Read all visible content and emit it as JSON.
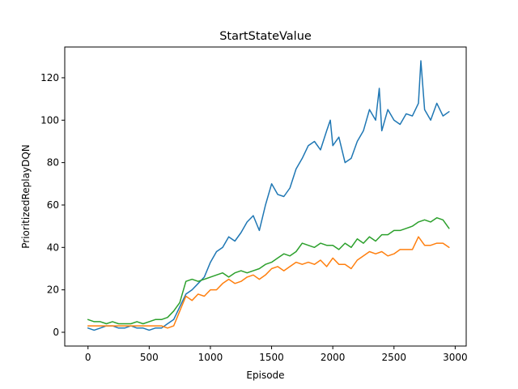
{
  "chart_data": {
    "type": "line",
    "title": "StartStateValue",
    "xlabel": "Episode",
    "ylabel": "PrioritizedReplayDQN",
    "xlim": [
      -190,
      3090
    ],
    "ylim": [
      -6.5,
      134.5
    ],
    "xticks": [
      0,
      500,
      1000,
      1500,
      2000,
      2500,
      3000
    ],
    "yticks": [
      0,
      20,
      40,
      60,
      80,
      100,
      120
    ],
    "grid": false,
    "colors": [
      "#1f77b4",
      "#ff7f0e",
      "#2ca02c"
    ],
    "series": [
      {
        "color": "#1f77b4",
        "x": [
          0,
          50,
          100,
          150,
          200,
          250,
          300,
          350,
          400,
          450,
          500,
          550,
          600,
          650,
          700,
          750,
          800,
          850,
          900,
          950,
          1000,
          1050,
          1100,
          1150,
          1200,
          1250,
          1300,
          1350,
          1400,
          1450,
          1500,
          1550,
          1600,
          1650,
          1700,
          1750,
          1800,
          1850,
          1900,
          1950,
          1980,
          2000,
          2050,
          2100,
          2150,
          2200,
          2250,
          2300,
          2350,
          2380,
          2400,
          2450,
          2500,
          2550,
          2600,
          2650,
          2700,
          2720,
          2750,
          2800,
          2850,
          2900,
          2950
        ],
        "values": [
          2,
          1,
          2,
          3,
          3,
          2,
          2,
          3,
          2,
          2,
          1,
          2,
          2,
          4,
          6,
          12,
          18,
          20,
          23,
          26,
          33,
          38,
          40,
          45,
          43,
          47,
          52,
          55,
          48,
          60,
          70,
          65,
          64,
          68,
          77,
          82,
          88,
          90,
          86,
          95,
          100,
          88,
          92,
          80,
          82,
          90,
          95,
          105,
          100,
          115,
          95,
          105,
          100,
          98,
          103,
          102,
          108,
          128,
          105,
          100,
          108,
          102,
          104
        ]
      },
      {
        "color": "#ff7f0e",
        "x": [
          0,
          100,
          200,
          300,
          400,
          500,
          550,
          600,
          650,
          700,
          750,
          800,
          850,
          900,
          950,
          1000,
          1050,
          1100,
          1150,
          1200,
          1250,
          1300,
          1350,
          1400,
          1450,
          1500,
          1550,
          1600,
          1650,
          1700,
          1750,
          1800,
          1850,
          1900,
          1950,
          2000,
          2050,
          2100,
          2150,
          2200,
          2250,
          2300,
          2350,
          2400,
          2450,
          2500,
          2550,
          2600,
          2650,
          2700,
          2750,
          2800,
          2850,
          2900,
          2950
        ],
        "values": [
          3,
          3,
          3,
          3,
          3,
          3,
          3,
          3,
          2,
          3,
          10,
          17,
          15,
          18,
          17,
          20,
          20,
          23,
          25,
          23,
          24,
          26,
          27,
          25,
          27,
          30,
          31,
          29,
          31,
          33,
          32,
          33,
          32,
          34,
          31,
          35,
          32,
          32,
          30,
          34,
          36,
          38,
          37,
          38,
          36,
          37,
          39,
          39,
          39,
          45,
          41,
          41,
          42,
          42,
          40
        ]
      },
      {
        "color": "#2ca02c",
        "x": [
          0,
          50,
          100,
          150,
          200,
          250,
          300,
          350,
          400,
          450,
          500,
          550,
          600,
          650,
          700,
          750,
          800,
          850,
          900,
          950,
          1000,
          1050,
          1100,
          1150,
          1200,
          1250,
          1300,
          1350,
          1400,
          1450,
          1500,
          1550,
          1600,
          1650,
          1700,
          1750,
          1800,
          1850,
          1900,
          1950,
          2000,
          2050,
          2100,
          2150,
          2200,
          2250,
          2300,
          2350,
          2400,
          2450,
          2500,
          2550,
          2600,
          2650,
          2700,
          2750,
          2800,
          2850,
          2900,
          2950
        ],
        "values": [
          6,
          5,
          5,
          4,
          5,
          4,
          4,
          4,
          5,
          4,
          5,
          6,
          6,
          7,
          10,
          14,
          24,
          25,
          24,
          25,
          26,
          27,
          28,
          26,
          28,
          29,
          28,
          29,
          30,
          32,
          33,
          35,
          37,
          36,
          38,
          42,
          41,
          40,
          42,
          41,
          41,
          39,
          42,
          40,
          44,
          42,
          45,
          43,
          46,
          46,
          48,
          48,
          49,
          50,
          52,
          53,
          52,
          54,
          53,
          49
        ]
      }
    ]
  }
}
